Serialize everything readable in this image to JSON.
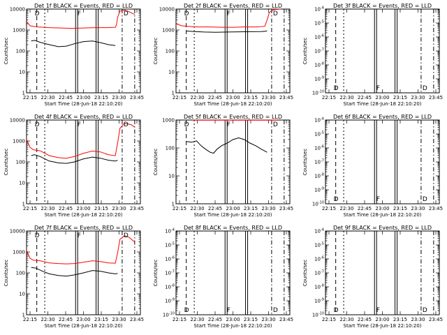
{
  "chart_data": [
    {
      "type": "line",
      "title": "Det 1f BLACK = Events, RED = LLD",
      "ylabel": "Counts/sec",
      "xlabel": "Start Time (28-Jun-18 22:10:20)",
      "yscale": "log",
      "ylim": [
        1,
        10000
      ],
      "xlim": [
        0,
        100
      ],
      "xticks": [
        "22:15",
        "22:30",
        "22:45",
        "23:00",
        "23:15",
        "23:30",
        "23:45"
      ],
      "yticks": [
        "1",
        "10",
        "100",
        "1000",
        "10000"
      ],
      "flags": [
        "D",
        "F",
        "D"
      ],
      "series": [
        {
          "color": "#ff0000",
          "x": [
            0,
            3,
            6,
            10,
            20,
            30,
            40,
            50,
            60,
            70,
            78,
            79,
            80,
            82,
            86,
            90,
            95
          ],
          "y": [
            2600,
            1600,
            1500,
            1400,
            1300,
            1250,
            1200,
            1250,
            1300,
            1300,
            1350,
            1800,
            4000,
            8000,
            9000,
            7500,
            5500
          ]
        },
        {
          "color": "#000000",
          "x": [
            4,
            4.1,
            7,
            12,
            20,
            28,
            35,
            42,
            50,
            58,
            65,
            72,
            78,
            79
          ],
          "y": [
            null,
            300,
            320,
            260,
            200,
            160,
            170,
            220,
            280,
            300,
            250,
            200,
            180,
            null
          ]
        }
      ]
    },
    {
      "type": "line",
      "title": "Det 2f BLACK = Events, RED = LLD",
      "ylabel": "Counts/sec",
      "xlabel": "Start Time (28-Jun-18 22:10:20)",
      "yscale": "log",
      "ylim": [
        1,
        10000
      ],
      "xlim": [
        0,
        100
      ],
      "xticks": [
        "22:15",
        "22:30",
        "22:45",
        "23:00",
        "23:15",
        "23:30",
        "23:45"
      ],
      "yticks": [
        "1",
        "10",
        "100",
        "1000",
        "10000"
      ],
      "flags": [
        "D",
        "F",
        "D"
      ],
      "series": [
        {
          "color": "#ff0000",
          "x": [
            0,
            5,
            10,
            20,
            30,
            40,
            50,
            60,
            70,
            78,
            80,
            82,
            86,
            92
          ],
          "y": [
            2000,
            1600,
            1500,
            1400,
            1400,
            1350,
            1350,
            1400,
            1400,
            1500,
            3000,
            7000,
            9500,
            10000
          ]
        },
        {
          "color": "#000000",
          "x": [
            9,
            9.1,
            15,
            25,
            35,
            45,
            55,
            65,
            75,
            80
          ],
          "y": [
            null,
            900,
            850,
            800,
            780,
            800,
            820,
            830,
            840,
            900
          ]
        }
      ]
    },
    {
      "type": "line",
      "title": "Det 3f BLACK = Events, RED = LLD",
      "ylabel": "Counts/sec",
      "xlabel": "Start Time (28-Jun-18 22:10:20)",
      "yscale": "log",
      "ylim": [
        1e-10,
        0.0001
      ],
      "xlim": [
        0,
        100
      ],
      "xticks": [
        "22:15",
        "22:30",
        "22:45",
        "23:00",
        "23:15",
        "23:30",
        "23:45"
      ],
      "yticks": [
        "10^-10",
        "10^-9",
        "10^-8",
        "10^-7",
        "10^-6",
        "10^-5",
        "10^-4"
      ],
      "flags": [
        "D",
        "F",
        "D"
      ],
      "series": []
    },
    {
      "type": "line",
      "title": "Det 4f BLACK = Events, RED = LLD",
      "ylabel": "Counts/sec",
      "xlabel": "Start Time (28-Jun-18 22:10:20)",
      "yscale": "log",
      "ylim": [
        1,
        10000
      ],
      "xlim": [
        0,
        100
      ],
      "xticks": [
        "22:15",
        "22:30",
        "22:45",
        "23:00",
        "23:15",
        "23:30",
        "23:45"
      ],
      "yticks": [
        "1",
        "10",
        "100",
        "1000",
        "10000"
      ],
      "flags": [
        "D",
        "F",
        "D"
      ],
      "series": [
        {
          "color": "#ff0000",
          "x": [
            0,
            3,
            6,
            12,
            20,
            28,
            35,
            42,
            50,
            58,
            65,
            72,
            78,
            80,
            82,
            86,
            92,
            95
          ],
          "y": [
            1200,
            500,
            380,
            340,
            200,
            160,
            150,
            180,
            260,
            330,
            300,
            220,
            200,
            800,
            4000,
            7000,
            6000,
            4500
          ]
        },
        {
          "color": "#000000",
          "x": [
            4,
            4.1,
            7,
            12,
            20,
            28,
            35,
            42,
            50,
            58,
            65,
            72,
            78,
            80
          ],
          "y": [
            null,
            200,
            220,
            180,
            110,
            90,
            85,
            100,
            140,
            170,
            150,
            120,
            110,
            120
          ]
        }
      ]
    },
    {
      "type": "line",
      "title": "Det 5f BLACK = Events, RED = LLD",
      "ylabel": "Counts/sec",
      "xlabel": "Start Time (28-Jun-18 22:10:20)",
      "yscale": "log",
      "ylim": [
        1,
        1000
      ],
      "xlim": [
        0,
        100
      ],
      "xticks": [
        "22:15",
        "22:30",
        "22:45",
        "23:00",
        "23:15",
        "23:30",
        "23:45"
      ],
      "yticks": [
        "1",
        "10",
        "100",
        "1000"
      ],
      "flags": [
        "D",
        "F",
        "D"
      ],
      "series": [
        {
          "color": "#ff0000",
          "x": [
            15,
            90
          ],
          "y": [
            990,
            990
          ]
        },
        {
          "color": "#000000",
          "x": [
            9,
            9.1,
            14,
            18,
            22,
            26,
            30,
            33,
            36,
            40,
            45,
            50,
            55,
            60,
            65,
            70,
            75,
            80
          ],
          "y": [
            null,
            170,
            160,
            180,
            120,
            90,
            70,
            65,
            90,
            120,
            150,
            200,
            230,
            200,
            150,
            120,
            90,
            70
          ]
        }
      ]
    },
    {
      "type": "line",
      "title": "Det 6f BLACK = Events, RED = LLD",
      "ylabel": "Counts/sec",
      "xlabel": "Start Time (28-Jun-18 22:10:20)",
      "yscale": "log",
      "ylim": [
        1e-10,
        0.0001
      ],
      "xlim": [
        0,
        100
      ],
      "xticks": [
        "22:15",
        "22:30",
        "22:45",
        "23:00",
        "23:15",
        "23:30",
        "23:45"
      ],
      "yticks": [
        "10^-10",
        "10^-9",
        "10^-8",
        "10^-7",
        "10^-6",
        "10^-5",
        "10^-4"
      ],
      "flags": [
        "D",
        "F",
        "D"
      ],
      "series": []
    },
    {
      "type": "line",
      "title": "Det 7f BLACK = Events, RED = LLD",
      "ylabel": "Counts/sec",
      "xlabel": "Start Time (28-Jun-18 22:10:20)",
      "yscale": "log",
      "ylim": [
        1,
        10000
      ],
      "xlim": [
        0,
        100
      ],
      "xticks": [
        "22:15",
        "22:30",
        "22:45",
        "23:00",
        "23:15",
        "23:30",
        "23:45"
      ],
      "yticks": [
        "1",
        "10",
        "100",
        "1000",
        "10000"
      ],
      "flags": [
        "D",
        "F",
        "D"
      ],
      "series": [
        {
          "color": "#ff0000",
          "x": [
            0,
            3,
            6,
            12,
            20,
            28,
            35,
            42,
            50,
            58,
            65,
            72,
            78,
            80,
            82,
            86,
            90,
            95
          ],
          "y": [
            1200,
            500,
            400,
            380,
            300,
            280,
            270,
            280,
            320,
            380,
            350,
            300,
            290,
            900,
            4000,
            6000,
            5000,
            3000
          ]
        },
        {
          "color": "#000000",
          "x": [
            4,
            4.1,
            8,
            14,
            20,
            28,
            35,
            42,
            50,
            58,
            65,
            72,
            78,
            80
          ],
          "y": [
            null,
            180,
            170,
            120,
            90,
            75,
            70,
            80,
            100,
            130,
            120,
            100,
            90,
            95
          ]
        }
      ]
    },
    {
      "type": "line",
      "title": "Det 8f BLACK = Events, RED = LLD",
      "ylabel": "Counts/sec",
      "xlabel": "Start Time (28-Jun-18 22:10:20)",
      "yscale": "log",
      "ylim": [
        1e-10,
        0.0001
      ],
      "xlim": [
        0,
        100
      ],
      "xticks": [
        "22:15",
        "22:30",
        "22:45",
        "23:00",
        "23:15",
        "23:30",
        "23:45"
      ],
      "yticks": [
        "10^-10",
        "10^-9",
        "10^-8",
        "10^-7",
        "10^-6",
        "10^-5",
        "10^-4"
      ],
      "flags": [
        "D",
        "F",
        "D"
      ],
      "series": []
    },
    {
      "type": "line",
      "title": "Det 9f BLACK = Events, RED = LLD",
      "ylabel": "Counts/sec",
      "xlabel": "Start Time (28-Jun-18 22:10:20)",
      "yscale": "log",
      "ylim": [
        1e-10,
        0.0001
      ],
      "xlim": [
        0,
        100
      ],
      "xticks": [
        "22:15",
        "22:30",
        "22:45",
        "23:00",
        "23:15",
        "23:30",
        "23:45"
      ],
      "yticks": [
        "10^-10",
        "10^-9",
        "10^-8",
        "10^-7",
        "10^-6",
        "10^-5",
        "10^-4"
      ],
      "flags": [
        "D",
        "F",
        "D"
      ],
      "series": []
    }
  ]
}
